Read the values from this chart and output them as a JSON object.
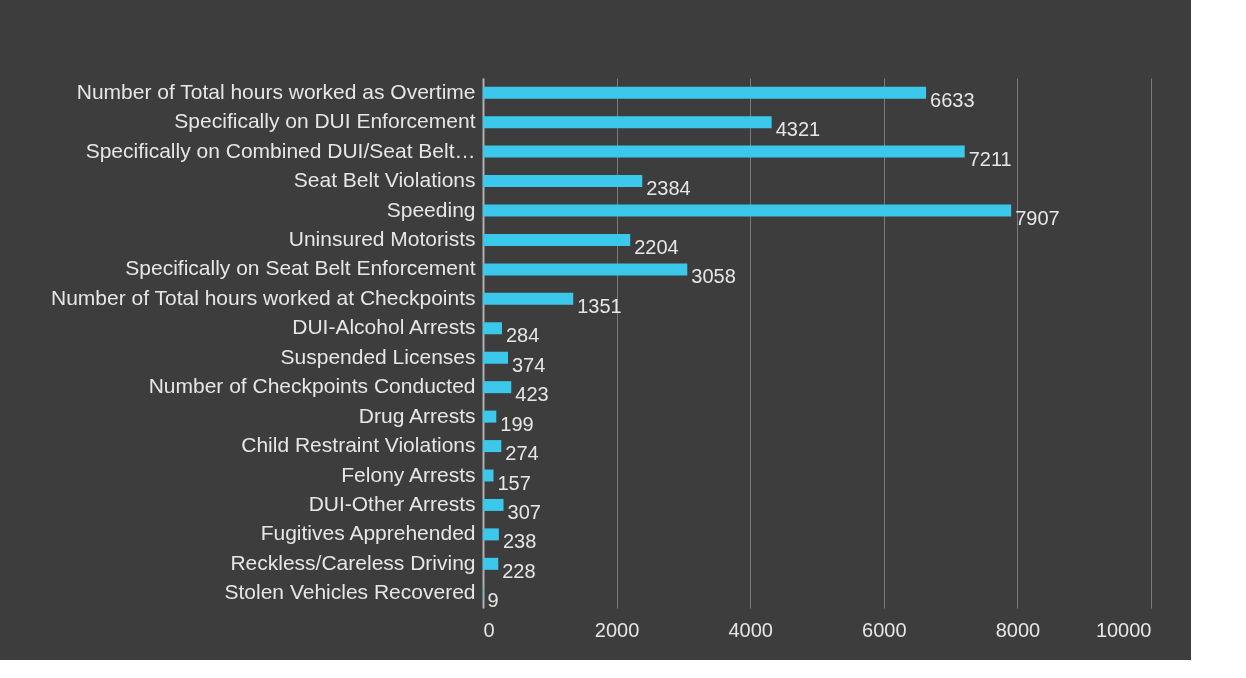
{
  "chart_data": {
    "type": "bar",
    "orientation": "horizontal",
    "categories": [
      "Number of Total hours worked as Overtime",
      "Specifically on DUI Enforcement",
      "Specifically on Combined DUI/Seat Belt…",
      "Seat Belt Violations",
      "Speeding",
      "Uninsured Motorists",
      "Specifically on Seat Belt Enforcement",
      "Number of Total hours worked at Checkpoints",
      "DUI-Alcohol Arrests",
      "Suspended Licenses",
      "Number of Checkpoints Conducted",
      "Drug Arrests",
      "Child Restraint Violations",
      "Felony Arrests",
      "DUI-Other Arrests",
      "Fugitives Apprehended",
      "Reckless/Careless Driving",
      "Stolen Vehicles Recovered"
    ],
    "values": [
      6633,
      4321,
      7211,
      2384,
      7907,
      2204,
      3058,
      1351,
      284,
      374,
      423,
      199,
      274,
      157,
      307,
      238,
      228,
      9
    ],
    "color": "#3cc8ea",
    "xlim": [
      0,
      10000
    ],
    "xticks": [
      0,
      2000,
      4000,
      6000,
      8000,
      10000
    ],
    "grid": "x",
    "data_labels": true
  }
}
